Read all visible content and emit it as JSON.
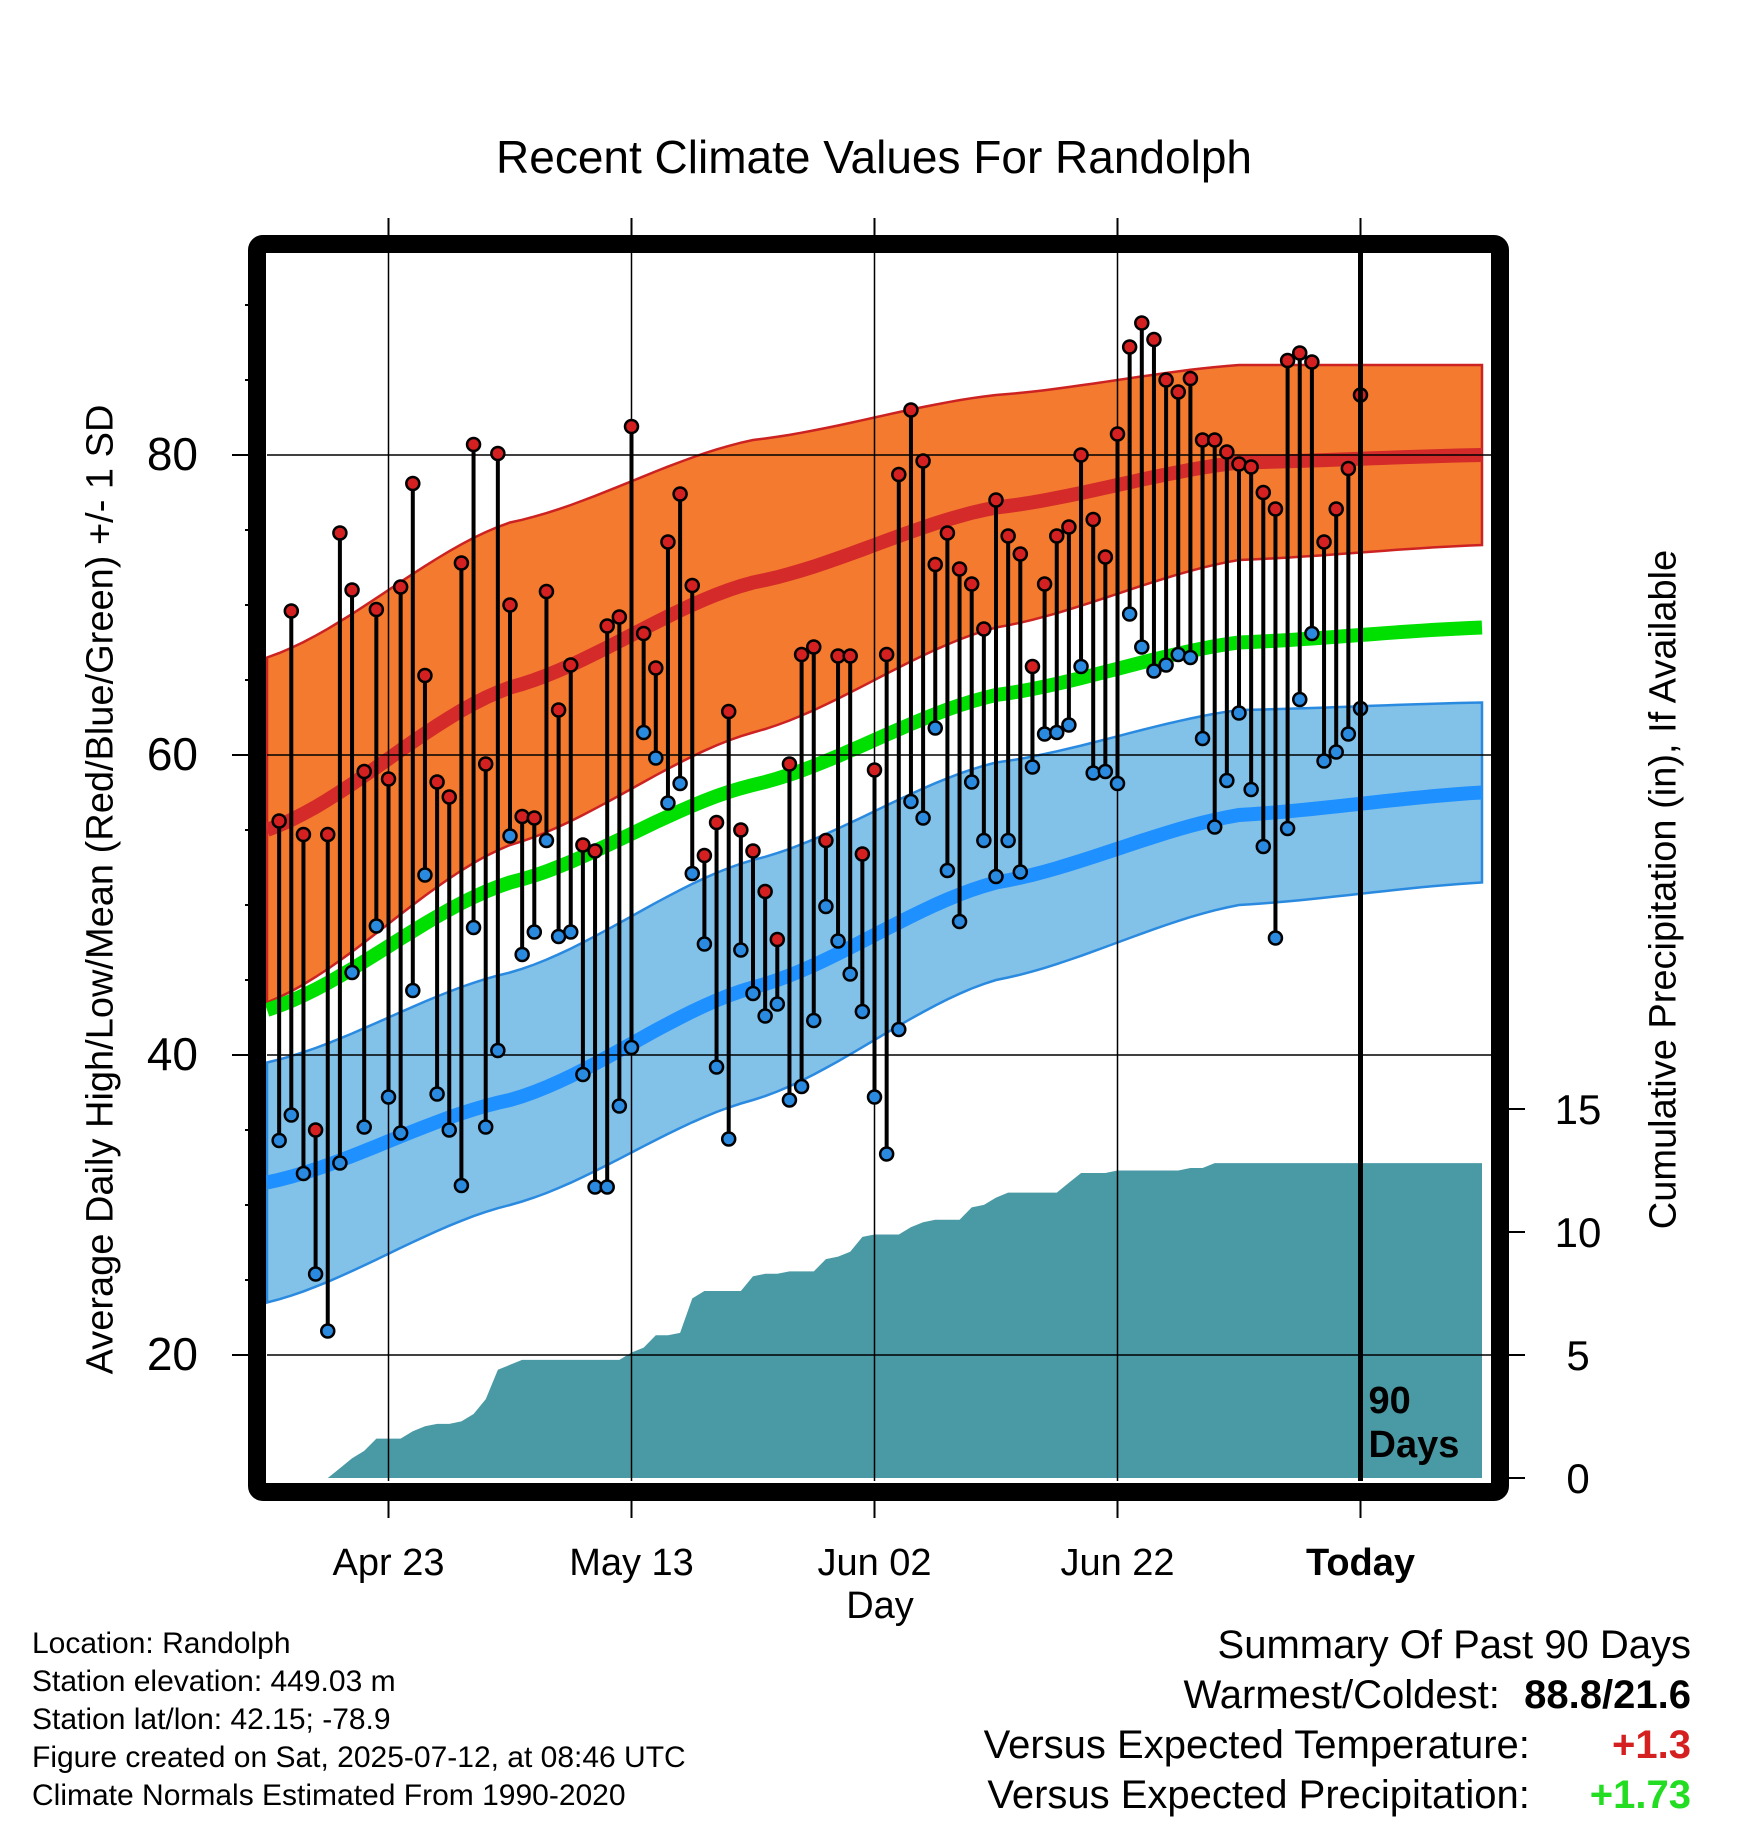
{
  "title": "Recent Climate Values For Randolph",
  "y_label_left": "Average Daily High/Low/Mean (Red/Blue/Green) +/- 1 SD",
  "y_label_right": "Cumulative Precipitation (in), If Available",
  "x_label": "Day",
  "today_marker": "90\nDays",
  "info": {
    "location": "Location: Randolph",
    "elevation": "Station elevation: 449.03 m",
    "latlon": "Station lat/lon: 42.15; -78.9",
    "created": "Figure created on Sat, 2025-07-12, at 08:46 UTC",
    "normals": "Climate Normals Estimated From 1990-2020"
  },
  "summary": {
    "heading": "Summary Of Past 90 Days",
    "warm_cold_label": "Warmest/Coldest:",
    "warm_cold_value": "88.8/21.6",
    "temp_label": "Versus Expected Temperature:",
    "temp_value": "+1.3",
    "precip_label": "Versus Expected Precipitation:",
    "precip_value": "+1.73"
  },
  "colors": {
    "high_band": "#f37a2e",
    "high_mean": "#d42a2a",
    "low_band": "#82c1e8",
    "low_mean": "#1e90ff",
    "mean_line": "#00e000",
    "precip": "#4a9aa5",
    "high_dot": "#d42020",
    "low_dot": "#2a8ae0",
    "temp_value": "#d42020",
    "precip_value": "#22dd22"
  },
  "chart_data": {
    "type": "line",
    "x_ticks": [
      "Apr 23",
      "May 13",
      "Jun 02",
      "Jun 22",
      "Today"
    ],
    "x_tick_days": [
      10,
      30,
      50,
      70,
      90
    ],
    "xlim": [
      0,
      100
    ],
    "y_ticks_left": [
      20,
      40,
      60,
      80
    ],
    "ylim_left": [
      12,
      94
    ],
    "y_ticks_right": [
      0,
      5,
      10,
      15
    ],
    "ylim_right": [
      0,
      50
    ],
    "normals": {
      "days": [
        0,
        20,
        40,
        60,
        80,
        100
      ],
      "high_mean": [
        55,
        64.5,
        71.5,
        76.5,
        79.5,
        80
      ],
      "high_upper": [
        66.5,
        75.5,
        81,
        84,
        86,
        86
      ],
      "high_lower": [
        43.5,
        54,
        61.5,
        68.5,
        73,
        74
      ],
      "low_mean": [
        31.5,
        37,
        44.5,
        51.5,
        56,
        57.5
      ],
      "low_upper": [
        39.5,
        45.5,
        53,
        59.5,
        63,
        63.5
      ],
      "low_lower": [
        23.5,
        30,
        37,
        45,
        50,
        51.5
      ],
      "mean_line": [
        43,
        51.5,
        58,
        64,
        67.5,
        68.5
      ]
    },
    "series": [
      {
        "name": "High",
        "values": [
          55.6,
          69.6,
          54.7,
          35,
          54.7,
          74.8,
          71,
          58.9,
          69.7,
          58.4,
          71.2,
          78.1,
          65.3,
          58.2,
          57.2,
          72.8,
          80.7,
          59.4,
          80.1,
          70,
          55.9,
          55.8,
          70.9,
          63,
          66,
          54,
          53.6,
          68.6,
          69.2,
          81.9,
          68.1,
          65.8,
          74.2,
          77.4,
          71.3,
          53.3,
          55.5,
          62.9,
          55,
          53.6,
          50.9,
          47.7,
          59.4,
          66.7,
          67.2,
          54.3,
          66.6,
          66.6,
          53.4,
          59,
          66.7,
          78.7,
          83,
          79.6,
          72.7,
          74.8,
          72.4,
          71.4,
          68.4,
          77,
          74.6,
          73.4,
          65.9,
          71.4,
          74.6,
          75.2,
          80,
          75.7,
          73.2,
          81.4,
          87.2,
          88.8,
          87.7,
          85,
          84.2,
          85.1,
          81,
          81,
          80.2,
          79.4,
          79.2,
          77.5,
          76.4,
          86.3,
          86.8,
          86.2,
          74.2,
          76.4,
          79.1,
          84
        ]
      },
      {
        "name": "Low",
        "values": [
          34.3,
          36,
          32.1,
          25.4,
          21.6,
          32.8,
          45.5,
          35.2,
          48.6,
          37.2,
          34.8,
          44.3,
          52,
          37.4,
          35,
          31.3,
          48.5,
          35.2,
          40.3,
          54.6,
          46.7,
          48.2,
          54.3,
          47.9,
          48.2,
          38.7,
          31.2,
          31.2,
          36.6,
          40.5,
          61.5,
          59.8,
          56.8,
          58.1,
          52.1,
          47.4,
          39.2,
          34.4,
          47,
          44.1,
          42.6,
          43.4,
          37,
          37.9,
          42.3,
          49.9,
          47.6,
          45.4,
          42.9,
          37.2,
          33.4,
          41.7,
          56.9,
          55.8,
          61.8,
          52.3,
          48.9,
          58.2,
          54.3,
          51.9,
          54.3,
          52.2,
          59.2,
          61.4,
          61.5,
          62,
          65.9,
          58.8,
          58.9,
          58.1,
          69.4,
          67.2,
          65.6,
          66,
          66.7,
          66.5,
          61.1,
          55.2,
          58.3,
          62.8,
          57.7,
          53.9,
          47.8,
          55.1,
          63.7,
          68.1,
          59.6,
          60.2,
          61.4,
          63.1
        ]
      }
    ],
    "precip_cumulative": {
      "days": [
        5,
        6,
        7,
        8,
        9,
        10,
        11,
        12,
        13,
        14,
        15,
        16,
        17,
        18,
        19,
        20,
        21,
        22,
        23,
        24,
        25,
        26,
        27,
        28,
        29,
        30,
        31,
        32,
        33,
        34,
        35,
        36,
        37,
        38,
        39,
        40,
        41,
        42,
        43,
        44,
        45,
        46,
        47,
        48,
        49,
        50,
        51,
        52,
        53,
        54,
        55,
        56,
        57,
        58,
        59,
        60,
        61,
        62,
        63,
        64,
        65,
        66,
        67,
        68,
        69,
        70,
        71,
        72,
        73,
        74,
        75,
        76,
        77,
        78,
        79,
        80,
        81,
        82,
        83,
        84,
        85,
        86,
        87,
        88,
        89,
        90,
        91,
        92,
        93,
        94,
        95,
        96,
        97,
        98,
        99,
        100
      ],
      "values": [
        0,
        0.4,
        0.8,
        1.1,
        1.6,
        1.6,
        1.6,
        1.9,
        2.1,
        2.2,
        2.2,
        2.3,
        2.6,
        3.2,
        4.4,
        4.6,
        4.8,
        4.8,
        4.8,
        4.8,
        4.8,
        4.8,
        4.8,
        4.8,
        4.8,
        5.1,
        5.3,
        5.8,
        5.8,
        5.9,
        7.3,
        7.6,
        7.6,
        7.6,
        7.6,
        8.2,
        8.3,
        8.3,
        8.4,
        8.4,
        8.4,
        8.9,
        9.0,
        9.2,
        9.8,
        9.9,
        9.9,
        9.9,
        10.2,
        10.4,
        10.5,
        10.5,
        10.5,
        11.0,
        11.1,
        11.4,
        11.6,
        11.6,
        11.6,
        11.6,
        11.6,
        12.0,
        12.4,
        12.4,
        12.4,
        12.5,
        12.5,
        12.5,
        12.5,
        12.5,
        12.5,
        12.6,
        12.6,
        12.8,
        12.8,
        12.8,
        12.8,
        12.8,
        12.8,
        12.8,
        12.8,
        12.8,
        12.8,
        12.8,
        12.8,
        12.8,
        12.8,
        12.8,
        12.8,
        12.8,
        12.8,
        12.8,
        12.8,
        12.8,
        12.8,
        12.8
      ]
    }
  }
}
